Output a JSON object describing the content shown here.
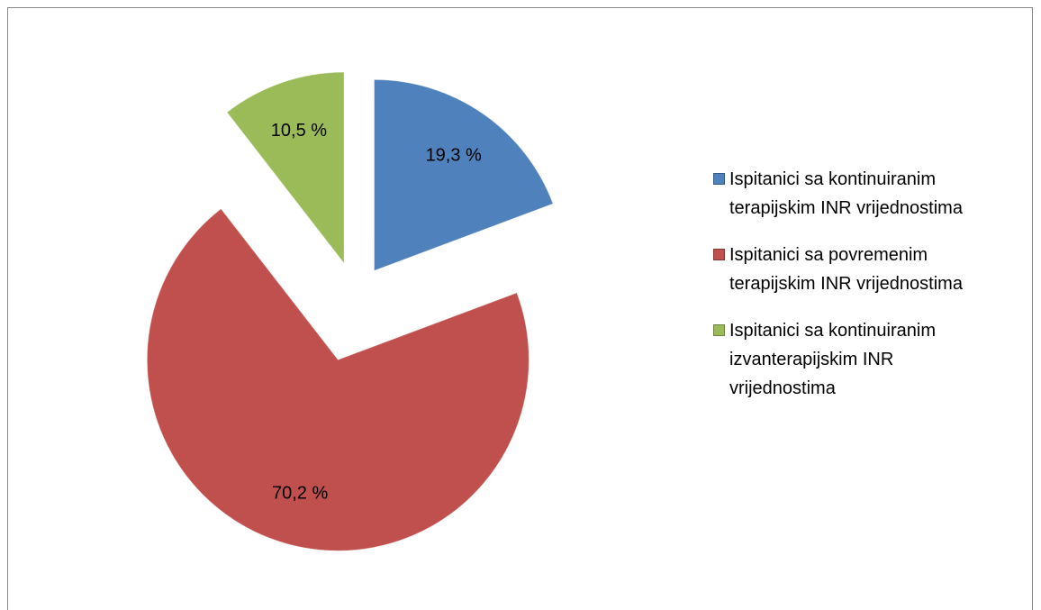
{
  "chart_data": {
    "type": "pie",
    "categories": [
      "Ispitanici sa kontinuiranim terapijskim INR vrijednostima",
      "Ispitanici sa povremenim terapijskim INR vrijednostima",
      "Ispitanici sa kontinuiranim izvanterapijskim INR vrijednostima"
    ],
    "values": [
      19.3,
      70.2,
      10.5
    ],
    "value_labels": [
      "19,3 %",
      "70,2 %",
      "10,5 %"
    ],
    "colors": [
      "#4f81bd",
      "#c0504d",
      "#9bbb59"
    ],
    "legend": "right"
  }
}
